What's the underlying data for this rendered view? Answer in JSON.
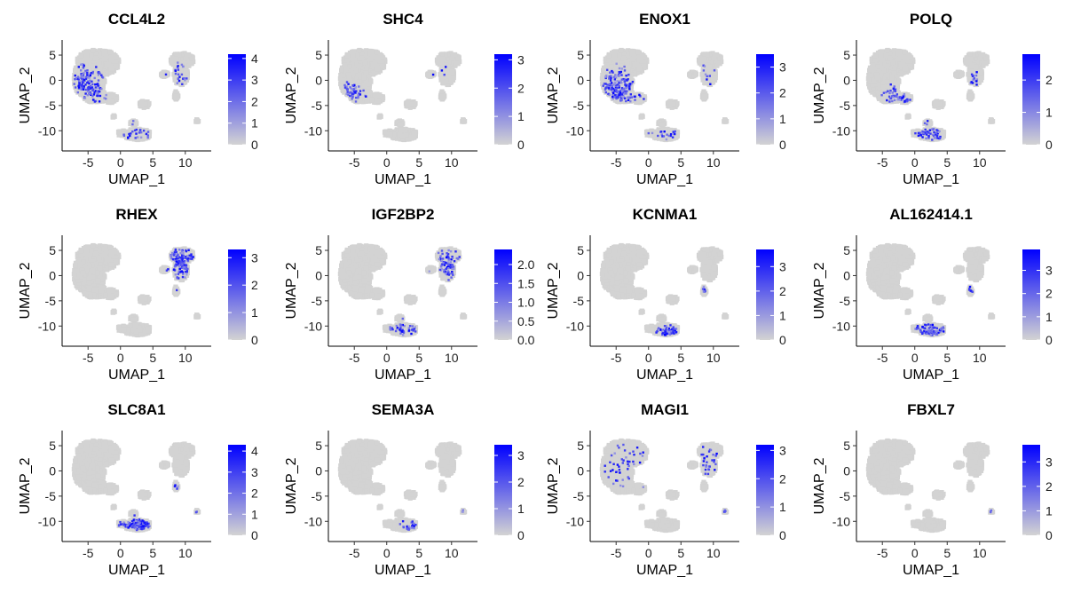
{
  "figure": {
    "xlabel": "UMAP_1",
    "ylabel": "UMAP_2",
    "colors": {
      "low": "#d3d3d3",
      "high": "#0000ff",
      "base_cells": "#d3d3d3"
    }
  },
  "chart_data": [
    {
      "type": "scatter",
      "title": "CCL4L2",
      "xlabel": "UMAP_1",
      "ylabel": "UMAP_2",
      "xlim": [
        -9,
        14
      ],
      "ylim": [
        -14,
        8
      ],
      "x_ticks": [
        -5,
        0,
        5,
        10
      ],
      "x_tick_labels": [
        "-5",
        "0",
        "5",
        "10"
      ],
      "y_ticks": [
        5,
        0,
        -5,
        -10
      ],
      "y_tick_labels": [
        "5",
        "0",
        "-5",
        "-10"
      ],
      "color_range": [
        0,
        4.2
      ],
      "color_ticks": [
        4,
        3,
        2,
        1,
        0
      ],
      "color_tick_labels": [
        "4",
        "3",
        "2",
        "1",
        "0"
      ],
      "hotspots": [
        {
          "x": -5,
          "y": -1,
          "sx": 1.6,
          "sy": 1.8,
          "weight": 0.9
        },
        {
          "x": 8.5,
          "y": 1,
          "sx": 0.8,
          "sy": 1.2,
          "weight": 0.4
        },
        {
          "x": 3,
          "y": -11,
          "sx": 2,
          "sy": 1.2,
          "weight": 0.25
        }
      ]
    },
    {
      "type": "scatter",
      "title": "SHC4",
      "xlabel": "UMAP_1",
      "ylabel": "UMAP_2",
      "xlim": [
        -9,
        14
      ],
      "ylim": [
        -14,
        8
      ],
      "x_ticks": [
        -5,
        0,
        5,
        10
      ],
      "x_tick_labels": [
        "-5",
        "0",
        "5",
        "10"
      ],
      "y_ticks": [
        5,
        0,
        -5,
        -10
      ],
      "y_tick_labels": [
        "5",
        "0",
        "-5",
        "-10"
      ],
      "color_range": [
        0,
        3.2
      ],
      "color_ticks": [
        3,
        2,
        1,
        0
      ],
      "color_tick_labels": [
        "3",
        "2",
        "1",
        "0"
      ],
      "hotspots": [
        {
          "x": -5.5,
          "y": -2.5,
          "sx": 1.4,
          "sy": 1,
          "weight": 0.8
        },
        {
          "x": 8,
          "y": 1,
          "sx": 0.8,
          "sy": 1,
          "weight": 0.2
        }
      ]
    },
    {
      "type": "scatter",
      "title": "ENOX1",
      "xlabel": "UMAP_1",
      "ylabel": "UMAP_2",
      "xlim": [
        -9,
        14
      ],
      "ylim": [
        -14,
        8
      ],
      "x_ticks": [
        -5,
        0,
        5,
        10
      ],
      "x_tick_labels": [
        "-5",
        "0",
        "5",
        "10"
      ],
      "y_ticks": [
        5,
        0,
        -5,
        -10
      ],
      "y_tick_labels": [
        "5",
        "0",
        "-5",
        "-10"
      ],
      "color_range": [
        0,
        3.5
      ],
      "color_ticks": [
        3,
        2,
        1,
        0
      ],
      "color_tick_labels": [
        "3",
        "2",
        "1",
        "0"
      ],
      "hotspots": [
        {
          "x": -5,
          "y": -1.5,
          "sx": 1.8,
          "sy": 1.8,
          "weight": 0.95
        },
        {
          "x": 8.5,
          "y": 1,
          "sx": 0.8,
          "sy": 1.3,
          "weight": 0.35
        },
        {
          "x": 3,
          "y": -10.5,
          "sx": 1.5,
          "sy": 1,
          "weight": 0.2
        }
      ]
    },
    {
      "type": "scatter",
      "title": "POLQ",
      "xlabel": "UMAP_1",
      "ylabel": "UMAP_2",
      "xlim": [
        -9,
        14
      ],
      "ylim": [
        -14,
        8
      ],
      "x_ticks": [
        -5,
        0,
        5,
        10
      ],
      "x_tick_labels": [
        "-5",
        "0",
        "5",
        "10"
      ],
      "y_ticks": [
        5,
        0,
        -5,
        -10
      ],
      "y_tick_labels": [
        "5",
        "0",
        "-5",
        "-10"
      ],
      "color_range": [
        0,
        2.8
      ],
      "color_ticks": [
        2,
        1,
        0
      ],
      "color_tick_labels": [
        "2",
        "1",
        "0"
      ],
      "hotspots": [
        {
          "x": -2,
          "y": -3.5,
          "sx": 1.4,
          "sy": 1.2,
          "weight": 0.9
        },
        {
          "x": 9,
          "y": 0,
          "sx": 0.6,
          "sy": 1,
          "weight": 0.6
        },
        {
          "x": 2.5,
          "y": -10,
          "sx": 1.5,
          "sy": 1,
          "weight": 0.6
        }
      ]
    },
    {
      "type": "scatter",
      "title": "RHEX",
      "xlabel": "UMAP_1",
      "ylabel": "UMAP_2",
      "xlim": [
        -9,
        14
      ],
      "ylim": [
        -14,
        8
      ],
      "x_ticks": [
        -5,
        0,
        5,
        10
      ],
      "x_tick_labels": [
        "-5",
        "0",
        "5",
        "10"
      ],
      "y_ticks": [
        5,
        0,
        -5,
        -10
      ],
      "y_tick_labels": [
        "5",
        "0",
        "-5",
        "-10"
      ],
      "color_range": [
        0,
        3.3
      ],
      "color_ticks": [
        3,
        2,
        1,
        0
      ],
      "color_tick_labels": [
        "3",
        "2",
        "1",
        "0"
      ],
      "hotspots": [
        {
          "x": 9.5,
          "y": 2.5,
          "sx": 1.5,
          "sy": 2.2,
          "weight": 1
        }
      ]
    },
    {
      "type": "scatter",
      "title": "IGF2BP2",
      "xlabel": "UMAP_1",
      "ylabel": "UMAP_2",
      "xlim": [
        -9,
        14
      ],
      "ylim": [
        -14,
        8
      ],
      "x_ticks": [
        -5,
        0,
        5,
        10
      ],
      "x_tick_labels": [
        "-5",
        "0",
        "5",
        "10"
      ],
      "y_ticks": [
        5,
        0,
        -5,
        -10
      ],
      "y_tick_labels": [
        "5",
        "0",
        "-5",
        "-10"
      ],
      "color_range": [
        0,
        2.4
      ],
      "color_ticks": [
        2,
        1.5,
        1,
        0.5,
        0
      ],
      "color_tick_labels": [
        "2.0",
        "1.5",
        "1.0",
        "0.5",
        "0.0"
      ],
      "hotspots": [
        {
          "x": 9.5,
          "y": 2,
          "sx": 1.4,
          "sy": 2,
          "weight": 0.7
        },
        {
          "x": 3,
          "y": -11,
          "sx": 2,
          "sy": 1.2,
          "weight": 0.45
        }
      ]
    },
    {
      "type": "scatter",
      "title": "KCNMA1",
      "xlabel": "UMAP_1",
      "ylabel": "UMAP_2",
      "xlim": [
        -9,
        14
      ],
      "ylim": [
        -14,
        8
      ],
      "x_ticks": [
        -5,
        0,
        5,
        10
      ],
      "x_tick_labels": [
        "-5",
        "0",
        "5",
        "10"
      ],
      "y_ticks": [
        5,
        0,
        -5,
        -10
      ],
      "y_tick_labels": [
        "5",
        "0",
        "-5",
        "-10"
      ],
      "color_range": [
        0,
        3.7
      ],
      "color_ticks": [
        3,
        2,
        1,
        0
      ],
      "color_tick_labels": [
        "3",
        "2",
        "1",
        "0"
      ],
      "hotspots": [
        {
          "x": 3.5,
          "y": -11.5,
          "sx": 1.8,
          "sy": 1,
          "weight": 1
        },
        {
          "x": 8.5,
          "y": -3,
          "sx": 0.4,
          "sy": 0.8,
          "weight": 0.5
        }
      ]
    },
    {
      "type": "scatter",
      "title": "AL162414.1",
      "xlabel": "UMAP_1",
      "ylabel": "UMAP_2",
      "xlim": [
        -9,
        14
      ],
      "ylim": [
        -14,
        8
      ],
      "x_ticks": [
        -5,
        0,
        5,
        10
      ],
      "x_tick_labels": [
        "-5",
        "0",
        "5",
        "10"
      ],
      "y_ticks": [
        5,
        0,
        -5,
        -10
      ],
      "y_tick_labels": [
        "5",
        "0",
        "-5",
        "-10"
      ],
      "color_range": [
        0,
        3.9
      ],
      "color_ticks": [
        3,
        2,
        1,
        0
      ],
      "color_tick_labels": [
        "3",
        "2",
        "1",
        "0"
      ],
      "hotspots": [
        {
          "x": 3,
          "y": -11.2,
          "sx": 1.8,
          "sy": 1,
          "weight": 1
        },
        {
          "x": 8.5,
          "y": -3,
          "sx": 0.4,
          "sy": 0.8,
          "weight": 0.5
        }
      ]
    },
    {
      "type": "scatter",
      "title": "SLC8A1",
      "xlabel": "UMAP_1",
      "ylabel": "UMAP_2",
      "xlim": [
        -9,
        14
      ],
      "ylim": [
        -14,
        8
      ],
      "x_ticks": [
        -5,
        0,
        5,
        10
      ],
      "x_tick_labels": [
        "-5",
        "0",
        "5",
        "10"
      ],
      "y_ticks": [
        5,
        0,
        -5,
        -10
      ],
      "y_tick_labels": [
        "5",
        "0",
        "-5",
        "-10"
      ],
      "color_range": [
        0,
        4.3
      ],
      "color_ticks": [
        4,
        3,
        2,
        1,
        0
      ],
      "color_tick_labels": [
        "4",
        "3",
        "2",
        "1",
        "0"
      ],
      "hotspots": [
        {
          "x": 2.5,
          "y": -10.5,
          "sx": 2,
          "sy": 1.3,
          "weight": 1
        },
        {
          "x": 8.5,
          "y": -3,
          "sx": 0.4,
          "sy": 0.8,
          "weight": 0.6
        },
        {
          "x": 11.8,
          "y": -8,
          "sx": 0.3,
          "sy": 0.3,
          "weight": 0.6
        }
      ]
    },
    {
      "type": "scatter",
      "title": "SEMA3A",
      "xlabel": "UMAP_1",
      "ylabel": "UMAP_2",
      "xlim": [
        -9,
        14
      ],
      "ylim": [
        -14,
        8
      ],
      "x_ticks": [
        -5,
        0,
        5,
        10
      ],
      "x_tick_labels": [
        "-5",
        "0",
        "5",
        "10"
      ],
      "y_ticks": [
        5,
        0,
        -5,
        -10
      ],
      "y_tick_labels": [
        "5",
        "0",
        "-5",
        "-10"
      ],
      "color_range": [
        0,
        3.4
      ],
      "color_ticks": [
        3,
        2,
        1,
        0
      ],
      "color_tick_labels": [
        "3",
        "2",
        "1",
        "0"
      ],
      "hotspots": [
        {
          "x": 4,
          "y": -11.5,
          "sx": 1.2,
          "sy": 0.8,
          "weight": 0.45
        },
        {
          "x": 11.8,
          "y": -8,
          "sx": 0.3,
          "sy": 0.3,
          "weight": 0.8
        }
      ]
    },
    {
      "type": "scatter",
      "title": "MAGI1",
      "xlabel": "UMAP_1",
      "ylabel": "UMAP_2",
      "xlim": [
        -9,
        14
      ],
      "ylim": [
        -14,
        8
      ],
      "x_ticks": [
        -5,
        0,
        5,
        10
      ],
      "x_tick_labels": [
        "-5",
        "0",
        "5",
        "10"
      ],
      "y_ticks": [
        5,
        0,
        -5,
        -10
      ],
      "y_tick_labels": [
        "5",
        "0",
        "-5",
        "-10"
      ],
      "color_range": [
        0,
        3.2
      ],
      "color_ticks": [
        3,
        2,
        1,
        0
      ],
      "color_tick_labels": [
        "3",
        "2",
        "1",
        "0"
      ],
      "hotspots": [
        {
          "x": -3,
          "y": 1,
          "sx": 3,
          "sy": 3,
          "weight": 0.12
        },
        {
          "x": 9,
          "y": 2,
          "sx": 1.5,
          "sy": 2,
          "weight": 0.2
        },
        {
          "x": 11.8,
          "y": -8,
          "sx": 0.3,
          "sy": 0.3,
          "weight": 0.8
        }
      ]
    },
    {
      "type": "scatter",
      "title": "FBXL7",
      "xlabel": "UMAP_1",
      "ylabel": "UMAP_2",
      "xlim": [
        -9,
        14
      ],
      "ylim": [
        -14,
        8
      ],
      "x_ticks": [
        -5,
        0,
        5,
        10
      ],
      "x_tick_labels": [
        "-5",
        "0",
        "5",
        "10"
      ],
      "y_ticks": [
        5,
        0,
        -5,
        -10
      ],
      "y_tick_labels": [
        "5",
        "0",
        "-5",
        "-10"
      ],
      "color_range": [
        0,
        3.7
      ],
      "color_ticks": [
        3,
        2,
        1,
        0
      ],
      "color_tick_labels": [
        "3",
        "2",
        "1",
        "0"
      ],
      "hotspots": [
        {
          "x": 11.8,
          "y": -8,
          "sx": 0.3,
          "sy": 0.3,
          "weight": 0.8
        },
        {
          "x": -3,
          "y": -6,
          "sx": 0.4,
          "sy": 0.4,
          "weight": 0.3
        }
      ]
    }
  ]
}
